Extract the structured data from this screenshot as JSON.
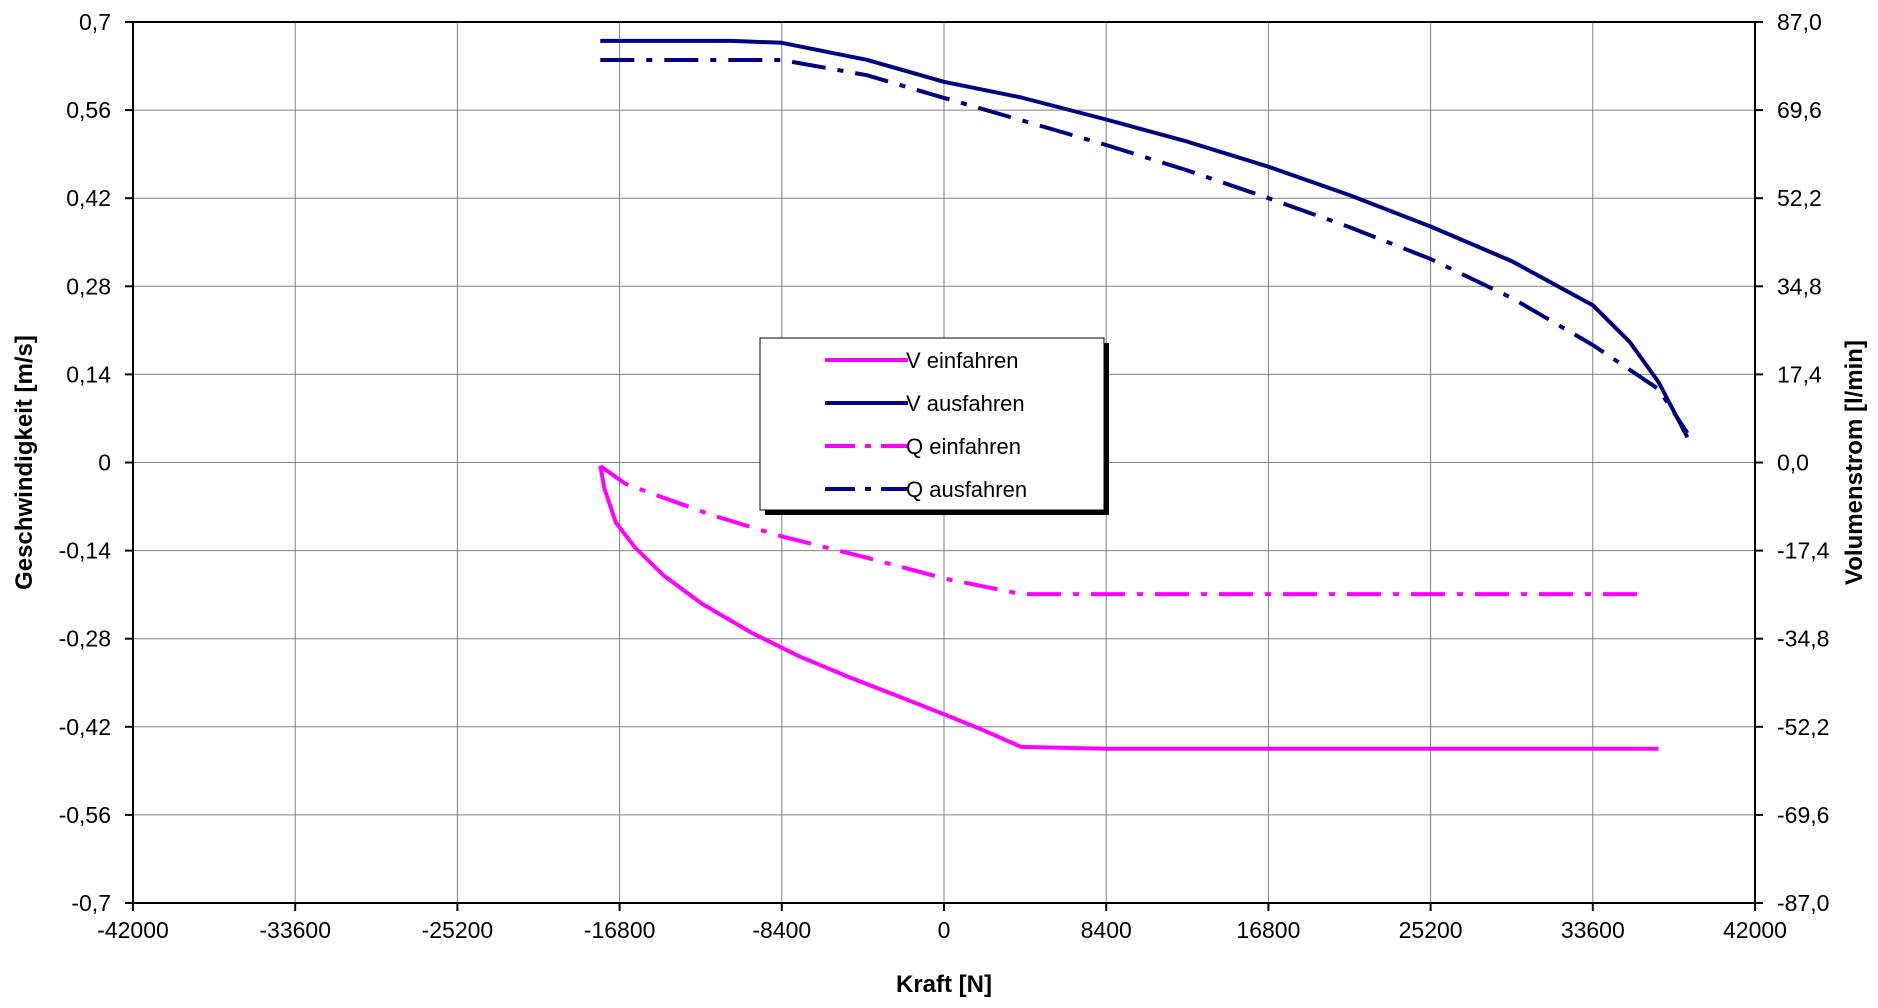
{
  "chart_data": {
    "type": "line",
    "title": "",
    "xlabel": "Kraft [N]",
    "ylabel": "Geschwindigkeit [m/s]",
    "y2label": "Volumenstrom [l/min]",
    "xlim": [
      -42000,
      42000
    ],
    "ylim": [
      -0.7,
      0.7
    ],
    "y2lim": [
      -87.0,
      87.0
    ],
    "x_ticks": [
      "-42000",
      "-33600",
      "-25200",
      "-16800",
      "-8400",
      "0",
      "8400",
      "16800",
      "25200",
      "33600",
      "42000"
    ],
    "y_ticks": [
      "0,7",
      "0,56",
      "0,42",
      "0,28",
      "0,14",
      "0",
      "-0,14",
      "-0,28",
      "-0,42",
      "-0,56",
      "-0,7"
    ],
    "y2_ticks": [
      "87,0",
      "69,6",
      "52,2",
      "34,8",
      "17,4",
      "0,0",
      "-17,4",
      "-34,8",
      "-52,2",
      "-69,6",
      "-87,0"
    ],
    "grid": true,
    "legend_position": "center",
    "series": [
      {
        "name": "V einfahren",
        "axis": "left",
        "color": "#ff00ff",
        "style": "solid",
        "x": [
          -17800,
          -17600,
          -17000,
          -16000,
          -14500,
          -12500,
          -10000,
          -7500,
          -5000,
          -2500,
          0,
          2000,
          4000,
          8400,
          16800,
          25200,
          33600,
          37000
        ],
        "y": [
          -0.005,
          -0.04,
          -0.095,
          -0.135,
          -0.18,
          -0.225,
          -0.27,
          -0.308,
          -0.34,
          -0.37,
          -0.4,
          -0.425,
          -0.452,
          -0.455,
          -0.455,
          -0.455,
          -0.455,
          -0.455
        ]
      },
      {
        "name": "V ausfahren",
        "axis": "left",
        "color": "#000080",
        "style": "solid",
        "x": [
          -17800,
          -11000,
          -8400,
          -4000,
          0,
          4000,
          8400,
          12600,
          16800,
          21000,
          25200,
          29400,
          33600,
          35500,
          37000,
          38500
        ],
        "y": [
          0.67,
          0.67,
          0.667,
          0.64,
          0.605,
          0.58,
          0.545,
          0.51,
          0.47,
          0.425,
          0.375,
          0.32,
          0.25,
          0.192,
          0.128,
          0.04
        ]
      },
      {
        "name": "Q einfahren",
        "axis": "right",
        "color": "#ff00ff",
        "style": "dashdot",
        "x": [
          -17800,
          -16500,
          -15000,
          -12000,
          -8400,
          -4000,
          0,
          4000,
          8400,
          16800,
          25200,
          33600,
          36200
        ],
        "y": [
          -0.7,
          -4.2,
          -6.3,
          -10.4,
          -14.6,
          -18.8,
          -22.9,
          -26.0,
          -26.0,
          -26.0,
          -26.0,
          -26.0,
          -26.0
        ]
      },
      {
        "name": "Q ausfahren",
        "axis": "right",
        "color": "#000080",
        "style": "dashdot",
        "x": [
          -17800,
          -8400,
          -4000,
          0,
          4000,
          8400,
          12600,
          16800,
          21000,
          25200,
          29400,
          33600,
          37000,
          38500
        ],
        "y": [
          79.5,
          79.5,
          76.5,
          72.0,
          67.6,
          62.7,
          57.7,
          52.2,
          46.5,
          40.2,
          32.5,
          23.2,
          14.5,
          5.8
        ]
      }
    ]
  }
}
